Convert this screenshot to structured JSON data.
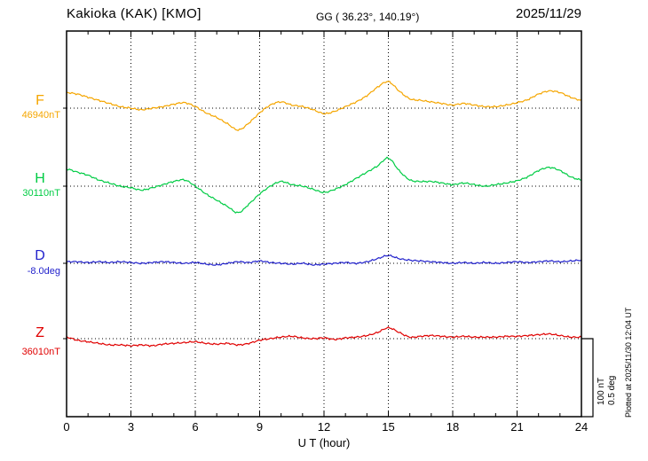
{
  "header": {
    "title": "Kakioka (KAK)  [KMO]",
    "coords": "GG ( 36.23°, 140.19°)",
    "date": "2025/11/29"
  },
  "axis": {
    "xlabel": "U T (hour)",
    "ticks": [
      0,
      3,
      6,
      9,
      12,
      15,
      18,
      21,
      24
    ],
    "xmin": 0,
    "xmax": 24
  },
  "scale_bar": {
    "line1": "100 nT",
    "line2": "0.5 deg"
  },
  "plotted_at": "Plotted at 2025/11/30 12:04 UT",
  "chart_data": {
    "type": "line",
    "title": "Kakioka (KAK) [KMO] magnetogram 2025/11/29",
    "xlabel": "U T (hour)",
    "x_start": 0,
    "x_end": 24,
    "x_step_hours": 0.5,
    "note": "offsets are deviations from baseline_value in the series unit",
    "series": [
      {
        "id": "F",
        "label": "F",
        "baseline_label": "46940nT",
        "baseline_value": 46940,
        "unit": "nT",
        "color": "#f5a600",
        "offsets": [
          20,
          18,
          14,
          10,
          6,
          2,
          0,
          -2,
          0,
          2,
          5,
          7,
          2,
          -6,
          -12,
          -20,
          -28,
          -19,
          -6,
          4,
          8,
          4,
          2,
          -2,
          -7,
          -4,
          2,
          8,
          16,
          27,
          34,
          22,
          12,
          10,
          8,
          6,
          4,
          6,
          4,
          2,
          2,
          4,
          7,
          11,
          18,
          22,
          20,
          14,
          10
        ]
      },
      {
        "id": "H",
        "label": "H",
        "baseline_label": "30110nT",
        "baseline_value": 30110,
        "unit": "nT",
        "color": "#00cc44",
        "offsets": [
          22,
          18,
          14,
          8,
          4,
          0,
          -2,
          -5,
          -2,
          2,
          6,
          8,
          0,
          -10,
          -18,
          -26,
          -34,
          -23,
          -10,
          0,
          6,
          2,
          0,
          -4,
          -8,
          -4,
          2,
          10,
          18,
          26,
          36,
          20,
          8,
          6,
          6,
          4,
          2,
          4,
          2,
          0,
          2,
          4,
          7,
          12,
          20,
          24,
          20,
          12,
          8
        ]
      },
      {
        "id": "D",
        "label": "D",
        "baseline_label": "-8.0deg",
        "baseline_value": -8.0,
        "unit": "deg",
        "color": "#2222cc",
        "offsets": [
          0.01,
          0.01,
          0.005,
          0.01,
          0.005,
          0.01,
          0.005,
          0,
          0.005,
          0.01,
          0.005,
          0,
          0.005,
          -0.005,
          -0.01,
          0,
          0.01,
          0.005,
          0.015,
          0.005,
          0,
          -0.005,
          0,
          -0.01,
          -0.005,
          0,
          0.005,
          0,
          0.01,
          0.03,
          0.05,
          0.03,
          0.02,
          0.015,
          0.01,
          0.005,
          0,
          0.005,
          0,
          0.005,
          0,
          0.005,
          0.01,
          0.005,
          0.01,
          0.015,
          0.01,
          0.015,
          0.02
        ]
      },
      {
        "id": "Z",
        "label": "Z",
        "baseline_label": "36010nT",
        "baseline_value": 36010,
        "unit": "nT",
        "color": "#e00000",
        "offsets": [
          2,
          -2,
          -4,
          -6,
          -8,
          -8,
          -9,
          -8,
          -9,
          -7,
          -6,
          -5,
          -4,
          -6,
          -7,
          -6,
          -8,
          -6,
          -2,
          0,
          2,
          3,
          1,
          0,
          1,
          -1,
          1,
          2,
          4,
          8,
          14,
          8,
          2,
          3,
          4,
          3,
          2,
          3,
          2,
          2,
          2,
          3,
          3,
          4,
          5,
          6,
          4,
          2,
          2
        ]
      }
    ],
    "scale_reference": {
      "nT_per_bar": 100,
      "deg_per_bar": 0.5
    },
    "legend_position": "left-margin",
    "grid": "dotted vertical every 3h, dotted horizontal at each baseline"
  }
}
